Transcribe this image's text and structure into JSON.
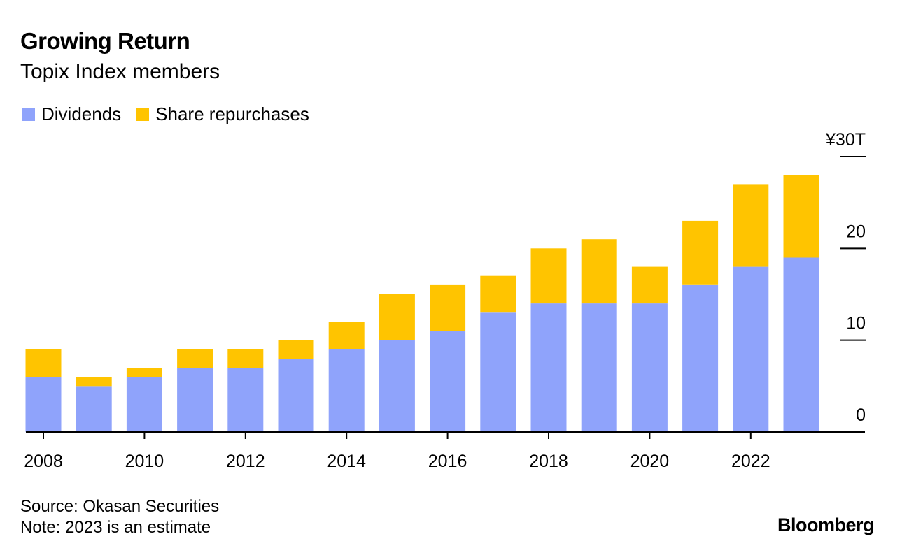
{
  "colors": {
    "dividends": "#8fa3fb",
    "buybacks": "#ffc400",
    "axis": "#000000"
  },
  "chart_data": {
    "type": "bar",
    "stacked": true,
    "title": "Growing Return",
    "subtitle": "Topix Index members",
    "unit_label": "¥30T",
    "categories": [
      "2008",
      "2009",
      "2010",
      "2011",
      "2012",
      "2013",
      "2014",
      "2015",
      "2016",
      "2017",
      "2018",
      "2019",
      "2020",
      "2021",
      "2022",
      "2023"
    ],
    "x_tick_labels": [
      "2008",
      "2010",
      "2012",
      "2014",
      "2016",
      "2018",
      "2020",
      "2022"
    ],
    "series": [
      {
        "name": "Dividends",
        "values": [
          6,
          5,
          6,
          7,
          7,
          8,
          9,
          10,
          11,
          13,
          14,
          14,
          14,
          16,
          18,
          19
        ]
      },
      {
        "name": "Share repurchases",
        "values": [
          3,
          1,
          1,
          2,
          2,
          2,
          3,
          5,
          5,
          4,
          6,
          7,
          4,
          7,
          9,
          9
        ]
      }
    ],
    "ylim": [
      0,
      30
    ],
    "y_ticks": [
      0,
      10,
      20,
      30
    ],
    "y_tick_labels": [
      "0",
      "10",
      "20",
      "¥30T"
    ],
    "legend_position": "top-left",
    "source": "Source: Okasan Securities",
    "note": "Note: 2023 is an estimate"
  },
  "brand": "Bloomberg"
}
